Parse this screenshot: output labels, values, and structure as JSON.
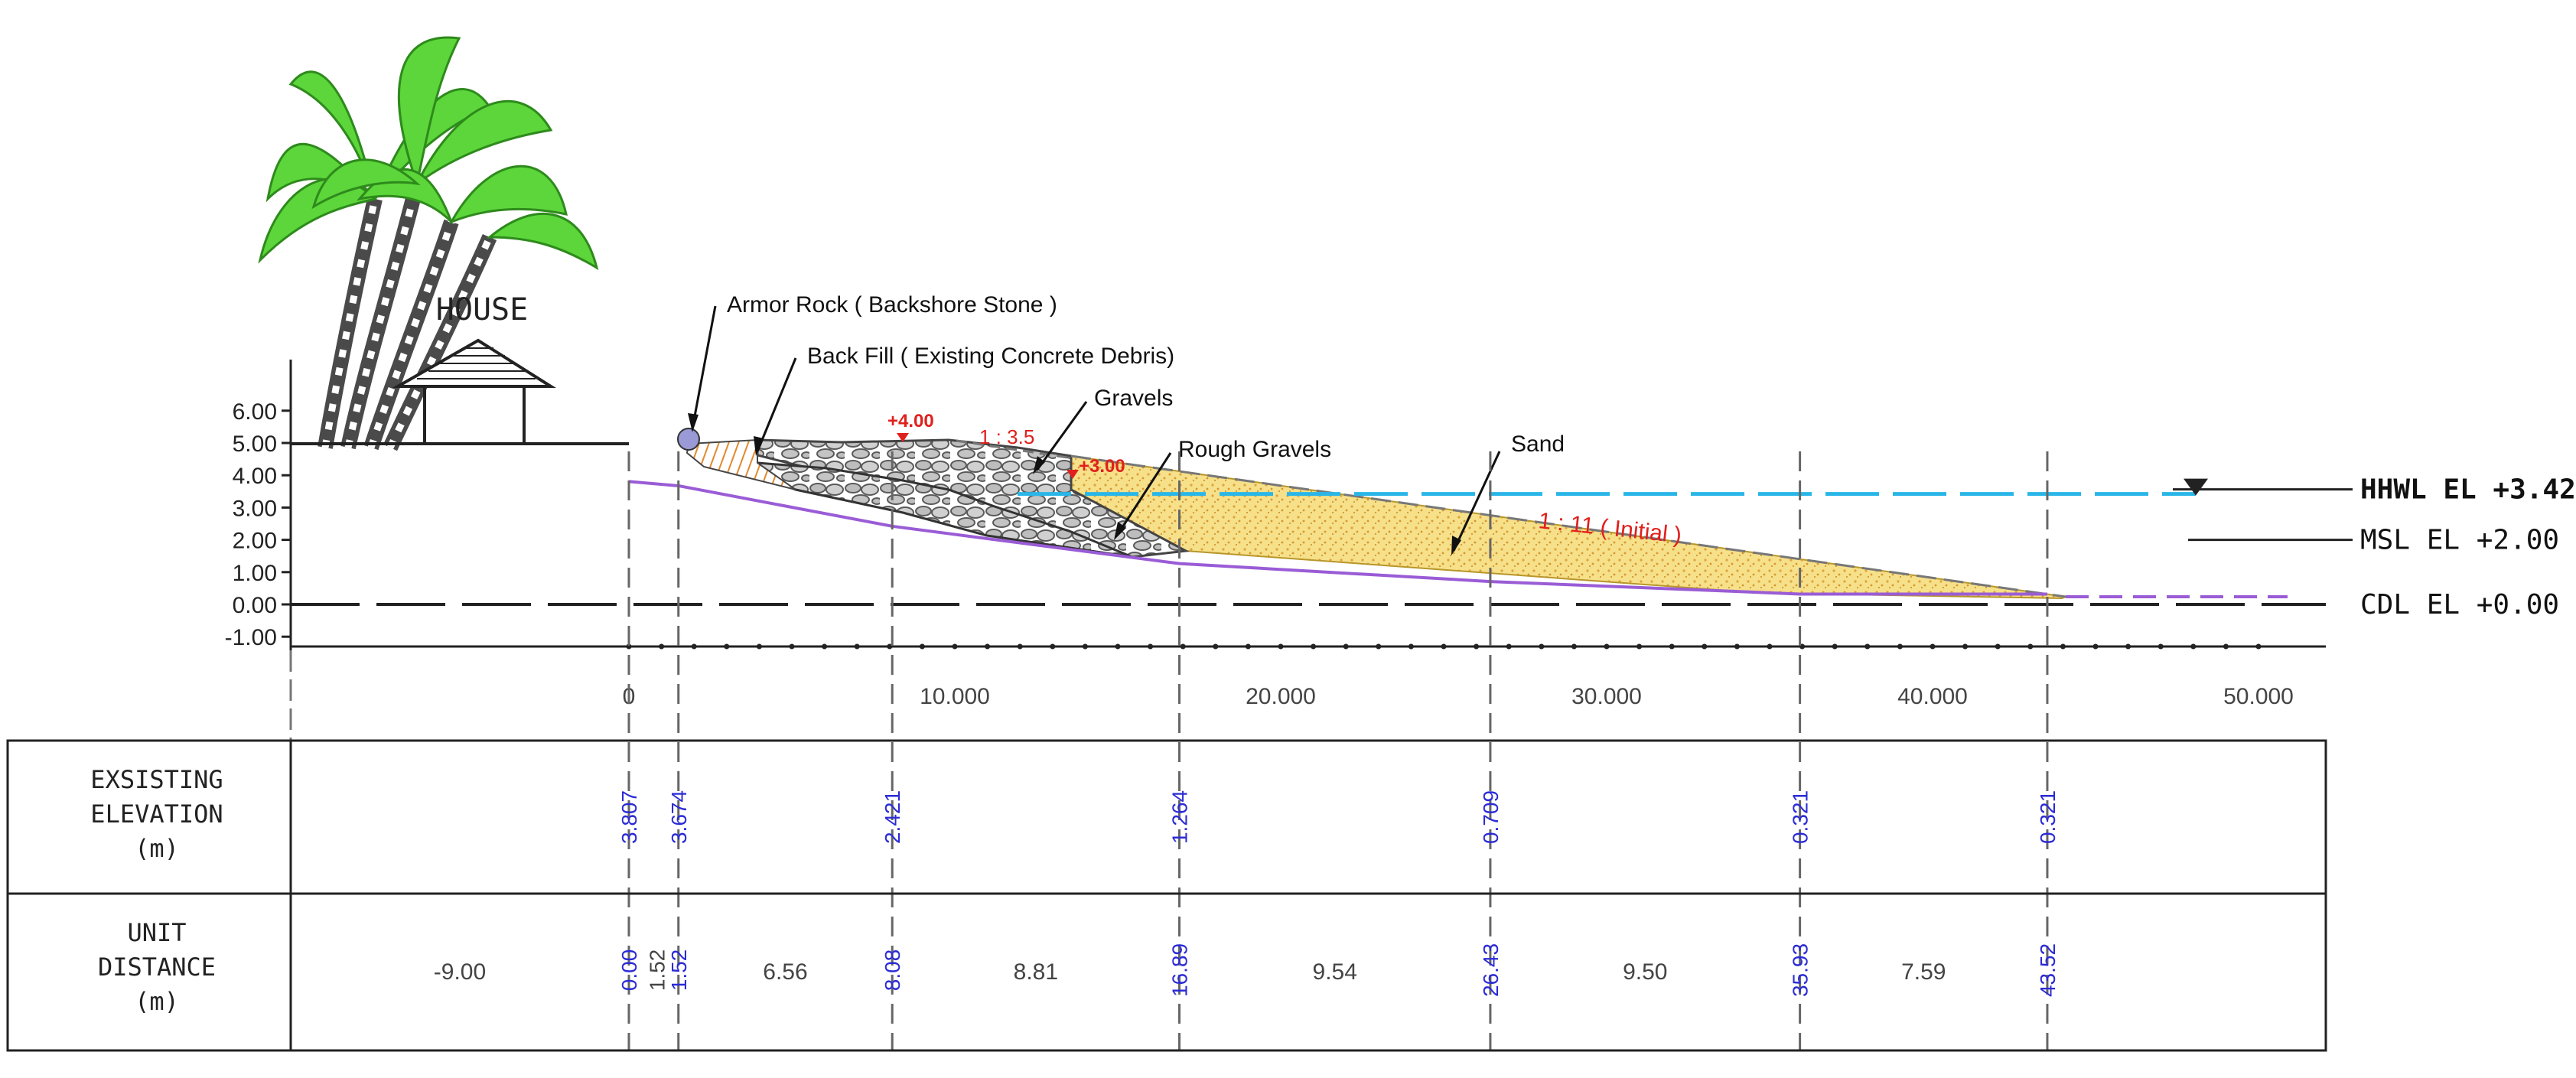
{
  "house_label": "HOUSE",
  "y_axis": {
    "ticks": [
      {
        "value": 6,
        "label": "6.00"
      },
      {
        "value": 5,
        "label": "5.00"
      },
      {
        "value": 4,
        "label": "4.00"
      },
      {
        "value": 3,
        "label": "3.00"
      },
      {
        "value": 2,
        "label": "2.00"
      },
      {
        "value": 1,
        "label": "1.00"
      },
      {
        "value": 0,
        "label": "0.00"
      },
      {
        "value": -1,
        "label": "-1.00"
      }
    ]
  },
  "x_axis": {
    "ticks": [
      {
        "value": 0,
        "label": "0"
      },
      {
        "value": 10,
        "label": "10.000"
      },
      {
        "value": 20,
        "label": "20.000"
      },
      {
        "value": 30,
        "label": "30.000"
      },
      {
        "value": 40,
        "label": "40.000"
      },
      {
        "value": 50,
        "label": "50.000"
      }
    ]
  },
  "water_levels": {
    "hhwl": {
      "label": "HHWL EL +3.42",
      "value": 3.42,
      "color": "#29b6e8"
    },
    "msl": {
      "label": "MSL EL +2.00",
      "value": 2.0
    },
    "cdl": {
      "label": "CDL EL +0.00",
      "value": 0.0
    }
  },
  "callouts": {
    "armor_rock": "Armor Rock ( Backshore Stone )",
    "back_fill": "Back Fill ( Existing Concrete Debris)",
    "gravels": "Gravels",
    "rough_gravels": "Rough Gravels",
    "sand": "Sand"
  },
  "design_marks": {
    "crest_top": "+4.00",
    "slope_steep": "1 : 3.5",
    "crest_step": "+3.00",
    "slope_sand": "1 : 11 ( Initial )",
    "color": "#e0201c"
  },
  "table": {
    "row1_header": [
      "EXSISTING",
      "ELEVATION",
      "(m)"
    ],
    "row2_header": [
      "UNIT",
      "DISTANCE",
      "(m)"
    ],
    "stations": [
      {
        "x": 0.0,
        "elevation": "3.807",
        "distance": "0.00"
      },
      {
        "x": 1.52,
        "elevation": "3.674",
        "distance": "1.52"
      },
      {
        "x": 8.08,
        "elevation": "2.421",
        "distance": "8.08"
      },
      {
        "x": 16.89,
        "elevation": "1.264",
        "distance": "16.89"
      },
      {
        "x": 26.43,
        "elevation": "0.709",
        "distance": "26.43"
      },
      {
        "x": 35.93,
        "elevation": "0.321",
        "distance": "35.93"
      },
      {
        "x": 43.52,
        "elevation": "0.321",
        "distance": "43.52"
      }
    ],
    "segments": [
      "-9.00",
      "1.52",
      "6.56",
      "8.81",
      "9.54",
      "9.50",
      "7.59"
    ],
    "station_color": "#2b2bd6"
  },
  "colors": {
    "palm_leaf": "#5cd63a",
    "palm_trunk": "#4a4a4a",
    "sand_fill": "#f6e08a",
    "sand_dot": "#e0a43a",
    "gravel": "#9a9a9a",
    "profile_line": "#9a5cd6"
  }
}
